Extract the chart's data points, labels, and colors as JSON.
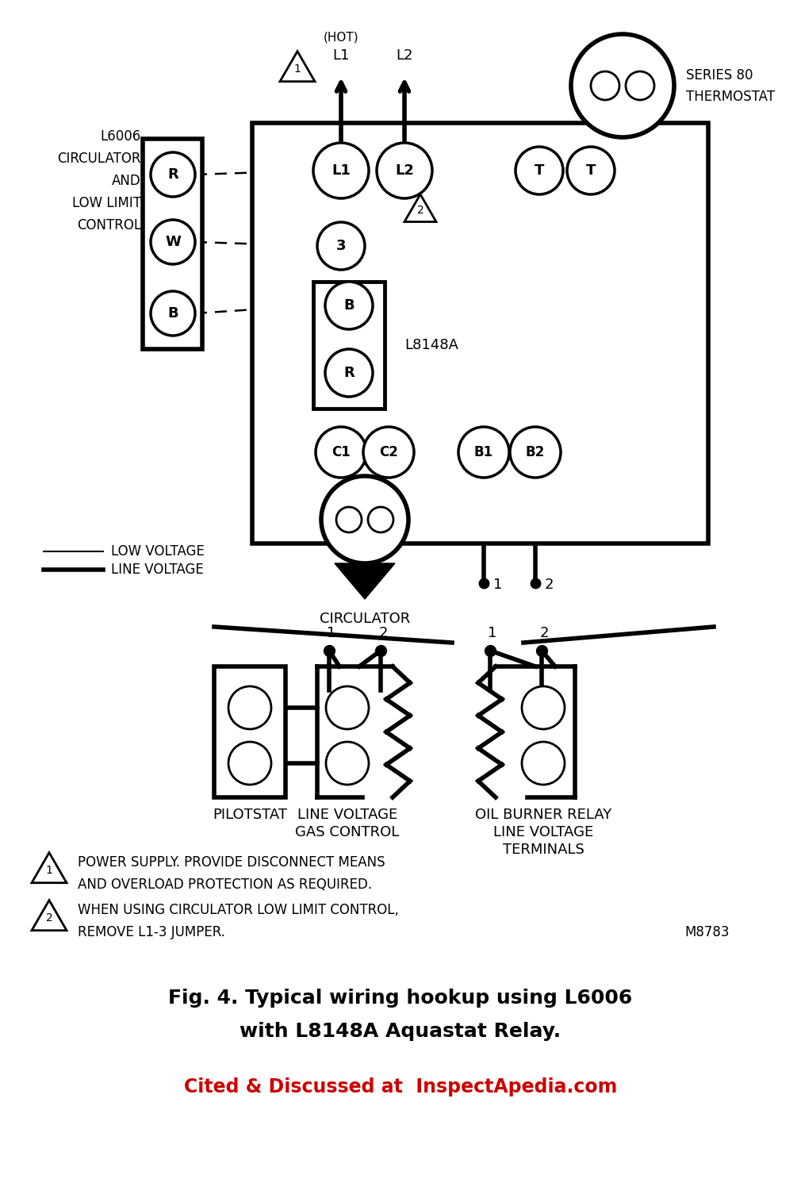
{
  "bg_color": "#ffffff",
  "line_color": "#000000",
  "title_line1": "Fig. 4. Typical wiring hookup using L6006",
  "title_line2": "with L8148A Aquastat Relay.",
  "cite_text": "Cited & Discussed at  InspectApedia.com",
  "cite_color": "#cc0000",
  "note1a": "POWER SUPPLY. PROVIDE DISCONNECT MEANS",
  "note1b": "AND OVERLOAD PROTECTION AS REQUIRED.",
  "note2a": "WHEN USING CIRCULATOR LOW LIMIT CONTROL,",
  "note2b": "REMOVE L1-3 JUMPER.",
  "model_code": "M8783",
  "legend_low": "LOW VOLTAGE",
  "legend_line": "LINE VOLTAGE"
}
